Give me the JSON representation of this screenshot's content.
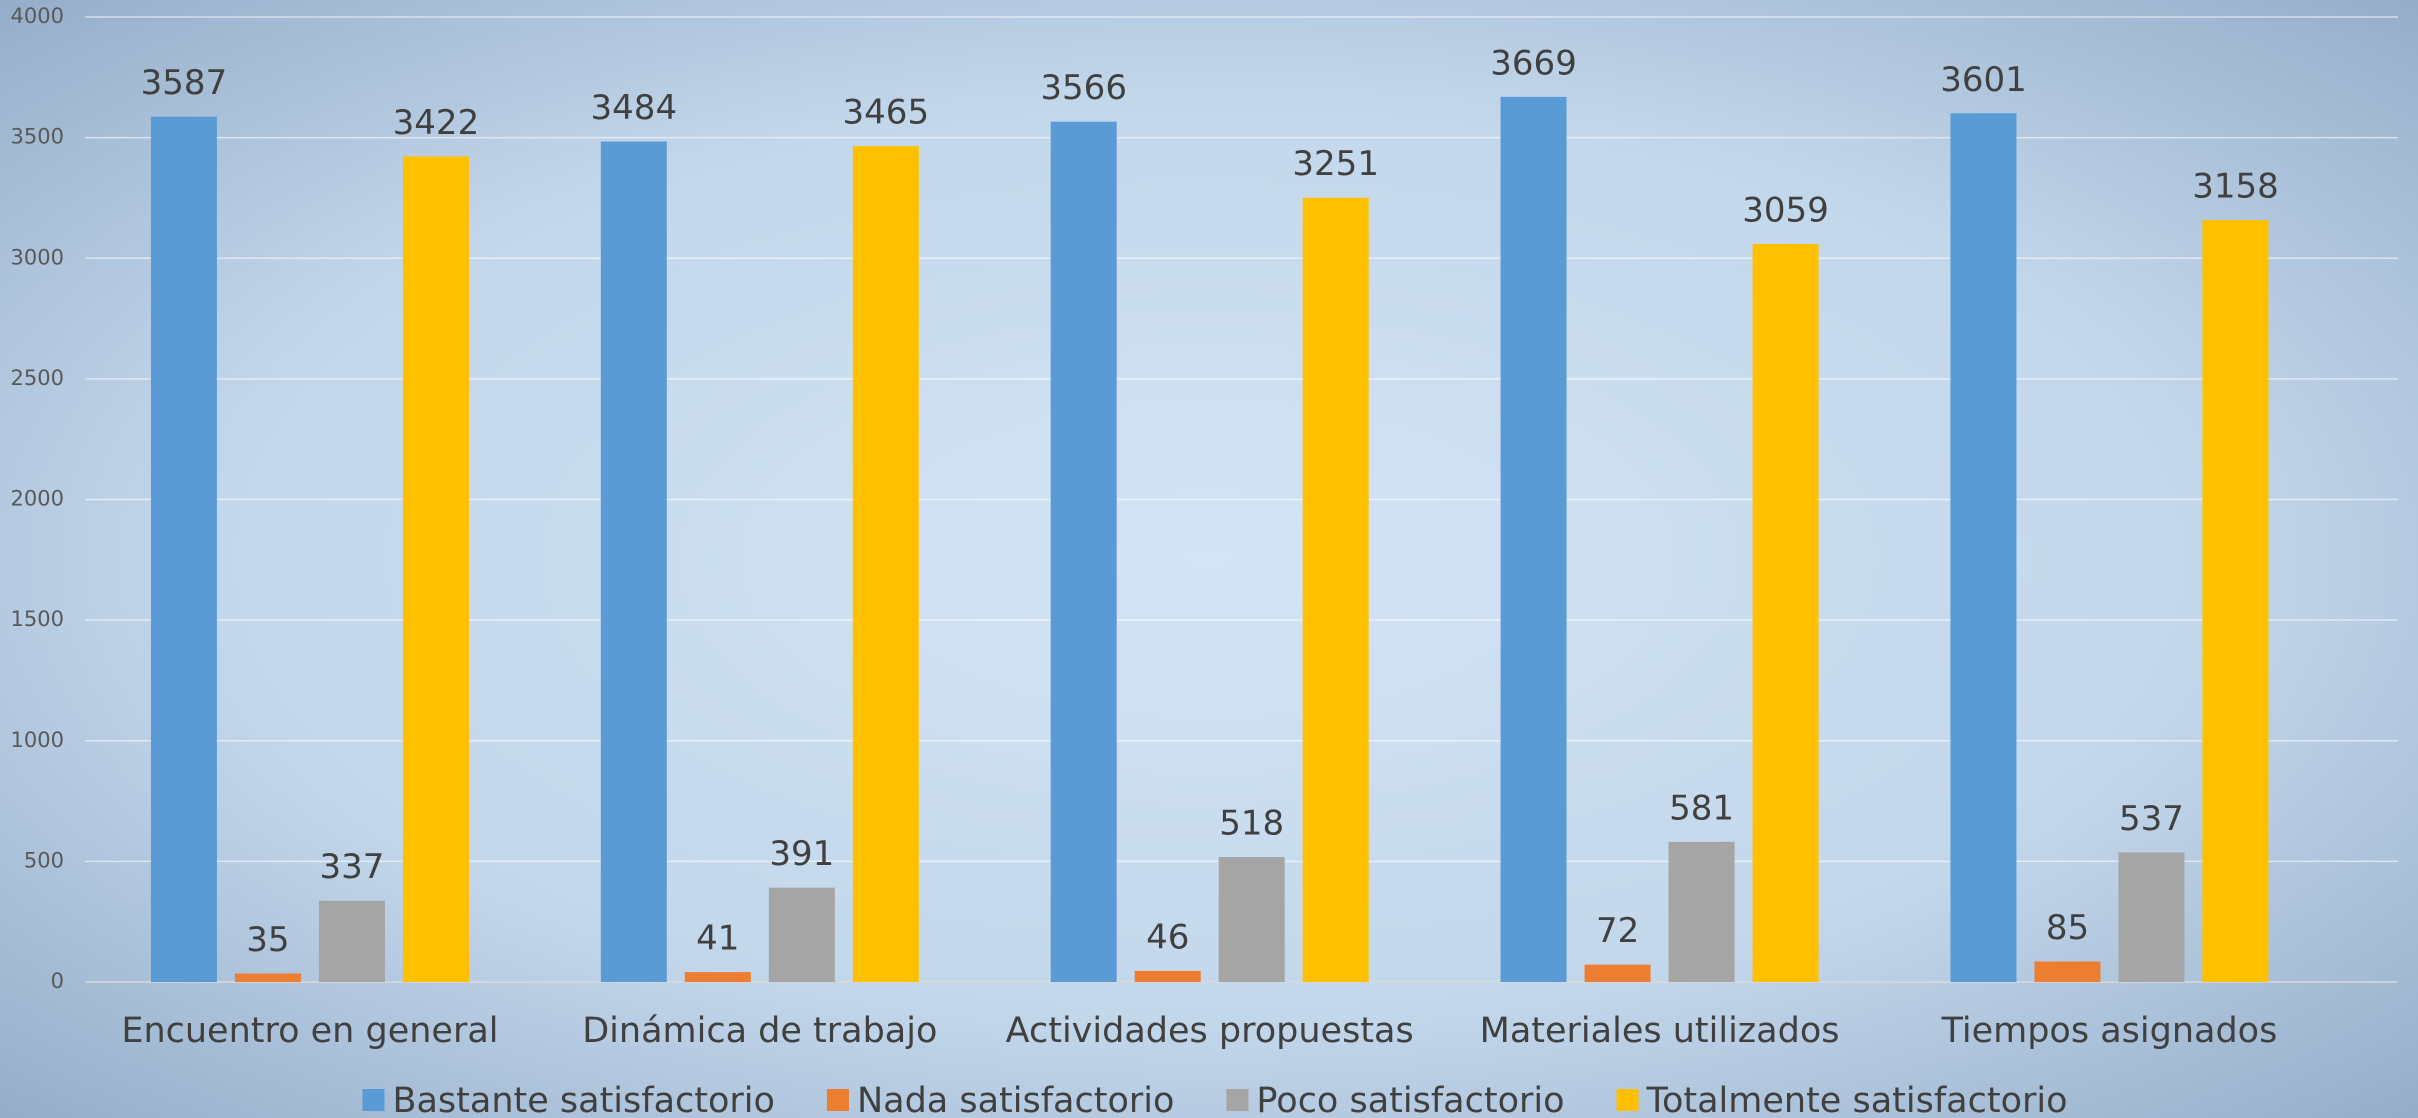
{
  "chart_data": {
    "type": "bar",
    "categories": [
      "Encuentro en general",
      "Dinámica de trabajo",
      "Actividades propuestas",
      "Materiales utilizados",
      "Tiempos asignados"
    ],
    "series": [
      {
        "name": "Bastante satisfactorio",
        "color": "#5b9bd5",
        "values": [
          3587,
          3484,
          3566,
          3669,
          3601
        ]
      },
      {
        "name": "Nada satisfactorio",
        "color": "#ed7d31",
        "values": [
          35,
          41,
          46,
          72,
          85
        ]
      },
      {
        "name": "Poco satisfactorio",
        "color": "#a5a5a5",
        "values": [
          337,
          391,
          518,
          581,
          537
        ]
      },
      {
        "name": "Totalmente satisfactorio",
        "color": "#ffc000",
        "values": [
          3422,
          3465,
          3251,
          3059,
          3158
        ]
      }
    ],
    "ylim": [
      0,
      4000
    ],
    "yticks": [
      0,
      500,
      1000,
      1500,
      2000,
      2500,
      3000,
      3500,
      4000
    ],
    "grid": true,
    "legend": "bottom"
  }
}
